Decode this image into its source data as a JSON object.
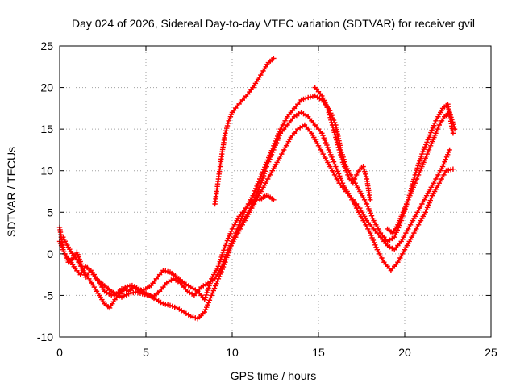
{
  "chart_data": {
    "type": "scatter",
    "title": "Day 024 of 2026, Sidereal Day-to-day VTEC variation (SDTVAR) for receiver gvil",
    "xlabel": "GPS time / hours",
    "ylabel": "SDTVAR / TECUs",
    "xlim": [
      0,
      25
    ],
    "ylim": [
      -10,
      25
    ],
    "x_ticks": [
      "0",
      "5",
      "10",
      "15",
      "20",
      "25"
    ],
    "y_ticks": [
      "-10",
      "-5",
      "0",
      "5",
      "10",
      "15",
      "20",
      "25"
    ],
    "grid": true,
    "legend": "none",
    "marker": "+",
    "color": "#ff0000",
    "series": [
      {
        "x": [
          0.0,
          0.2,
          0.5,
          0.8,
          1.0,
          1.3,
          1.5,
          1.8,
          2.0,
          2.3,
          2.6,
          3.0,
          3.3,
          3.6,
          4.0,
          4.3,
          4.6,
          5.0,
          5.3,
          5.6,
          6.0,
          6.4,
          6.8,
          7.2,
          7.6,
          8.0,
          8.4,
          8.8,
          9.2,
          9.6,
          10.0,
          10.4,
          10.8,
          11.2,
          11.6,
          12.0,
          12.4,
          12.8,
          13.2,
          13.6,
          14.0,
          14.4,
          14.8,
          15.2,
          15.6,
          16.0,
          16.3,
          16.6,
          17.0,
          17.4,
          17.8,
          18.2,
          18.6,
          19.0,
          19.4,
          19.8,
          20.2,
          20.6,
          21.0,
          21.4,
          21.8,
          22.2,
          22.5,
          22.8
        ],
        "y": [
          3.2,
          0.5,
          -1.0,
          -0.5,
          0.2,
          -1.5,
          -2.8,
          -2.0,
          -2.5,
          -3.5,
          -4.5,
          -5.0,
          -4.8,
          -4.2,
          -4.5,
          -4.0,
          -4.5,
          -4.2,
          -3.8,
          -3.0,
          -2.0,
          -2.2,
          -2.8,
          -3.5,
          -4.0,
          -4.5,
          -5.5,
          -3.0,
          -1.5,
          1.0,
          3.0,
          4.5,
          5.5,
          7.0,
          9.0,
          11.0,
          13.0,
          15.0,
          16.5,
          17.5,
          18.5,
          18.8,
          19.0,
          18.5,
          17.5,
          15.5,
          12.5,
          10.5,
          9.0,
          7.5,
          6.0,
          4.0,
          2.5,
          1.5,
          2.0,
          4.0,
          6.5,
          9.5,
          12.0,
          14.0,
          16.0,
          17.5,
          18.0,
          14.5
        ]
      },
      {
        "x": [
          0.0,
          0.3,
          0.6,
          0.9,
          1.2,
          1.5,
          1.8,
          2.1,
          2.4,
          2.7,
          3.0,
          3.3,
          3.6,
          4.0,
          4.4,
          4.8,
          5.2,
          5.6,
          6.0,
          6.4,
          6.8,
          7.2,
          7.6,
          8.0,
          8.4,
          8.8,
          9.2,
          9.6,
          10.0,
          10.4,
          10.8,
          11.2,
          11.6,
          12.0,
          12.4,
          12.8,
          13.2,
          13.6,
          14.0,
          14.4,
          14.8,
          15.2,
          15.6,
          16.0,
          16.4,
          16.8,
          17.2,
          17.6,
          18.0,
          18.4,
          18.8,
          19.2,
          19.6,
          20.0,
          20.4,
          20.8,
          21.2,
          21.6,
          22.0,
          22.4,
          22.8
        ],
        "y": [
          1.5,
          0.0,
          -0.8,
          -1.8,
          -2.5,
          -1.5,
          -2.0,
          -3.0,
          -3.5,
          -4.0,
          -4.5,
          -5.0,
          -5.2,
          -4.8,
          -4.6,
          -4.8,
          -5.0,
          -5.5,
          -6.0,
          -6.2,
          -6.5,
          -7.0,
          -7.5,
          -7.8,
          -7.0,
          -5.0,
          -3.0,
          -1.0,
          1.5,
          3.0,
          4.5,
          6.0,
          8.0,
          10.5,
          12.5,
          14.5,
          15.5,
          16.5,
          17.0,
          16.5,
          15.5,
          14.5,
          12.5,
          10.5,
          8.5,
          7.0,
          5.5,
          4.0,
          2.5,
          0.5,
          -1.0,
          -2.0,
          -1.0,
          0.5,
          2.0,
          3.5,
          5.0,
          7.0,
          8.5,
          10.0,
          10.2
        ]
      },
      {
        "x": [
          0.2,
          0.5,
          0.8,
          1.1,
          1.4,
          1.7,
          2.0,
          2.3,
          2.6,
          2.9,
          3.2,
          3.5,
          3.8,
          4.2,
          4.6,
          5.0,
          5.4,
          5.8,
          6.2,
          6.6,
          7.0,
          7.4,
          7.8,
          8.2,
          8.6,
          9.0,
          9.4,
          9.8,
          10.2,
          10.6,
          11.0,
          11.4,
          11.8,
          12.2,
          12.6,
          13.0,
          13.4,
          13.8,
          14.2,
          14.6,
          15.0,
          15.4,
          15.8,
          16.2,
          16.6,
          17.0,
          17.4,
          17.8,
          18.2,
          18.6,
          19.0,
          19.4,
          19.8,
          20.2,
          20.6,
          21.0,
          21.4,
          21.8,
          22.2,
          22.6
        ],
        "y": [
          2.0,
          0.8,
          -0.2,
          -1.0,
          -2.2,
          -3.0,
          -4.0,
          -5.0,
          -6.0,
          -6.5,
          -5.5,
          -4.8,
          -4.0,
          -3.8,
          -4.2,
          -4.8,
          -5.2,
          -4.5,
          -3.5,
          -3.0,
          -3.5,
          -4.5,
          -5.0,
          -4.0,
          -3.5,
          -3.0,
          -1.5,
          0.5,
          2.0,
          3.5,
          5.0,
          6.5,
          8.0,
          9.5,
          11.0,
          12.5,
          14.0,
          15.0,
          15.5,
          14.5,
          13.0,
          11.5,
          10.0,
          8.5,
          7.5,
          6.5,
          5.5,
          4.0,
          3.0,
          2.0,
          1.0,
          0.5,
          1.5,
          3.0,
          4.5,
          6.0,
          7.5,
          9.0,
          10.5,
          12.5
        ]
      },
      {
        "x": [
          9.0,
          9.2,
          9.4,
          9.6,
          9.8,
          10.0,
          10.3,
          10.6,
          10.9,
          11.2,
          11.5,
          11.8,
          12.1,
          12.4
        ],
        "y": [
          6.0,
          9.0,
          12.0,
          14.5,
          16.0,
          17.0,
          17.8,
          18.5,
          19.2,
          20.0,
          21.0,
          22.0,
          23.0,
          23.5
        ]
      },
      {
        "x": [
          9.8,
          10.0,
          10.2,
          10.4,
          10.6,
          10.8,
          11.0,
          11.2,
          11.4,
          11.6,
          11.8,
          12.0,
          12.2,
          12.4
        ],
        "y": [
          0.5,
          1.5,
          2.5,
          3.5,
          4.5,
          5.5,
          6.0,
          6.3,
          6.5,
          6.5,
          6.8,
          7.0,
          6.8,
          6.5
        ]
      },
      {
        "x": [
          14.8,
          15.0,
          15.2,
          15.4,
          15.6,
          15.8,
          16.0,
          16.2,
          16.4,
          16.6,
          16.8,
          17.0,
          17.2,
          17.4,
          17.6,
          17.8,
          18.0
        ],
        "y": [
          20.0,
          19.5,
          19.0,
          18.2,
          17.0,
          15.5,
          14.0,
          12.5,
          11.0,
          10.0,
          9.0,
          8.5,
          9.5,
          10.2,
          10.5,
          9.0,
          6.5
        ]
      },
      {
        "x": [
          19.0,
          19.3,
          19.6,
          19.9,
          20.2,
          20.5,
          20.8,
          21.1,
          21.4,
          21.7,
          22.0,
          22.3,
          22.6,
          22.9
        ],
        "y": [
          3.0,
          2.5,
          3.5,
          5.0,
          6.5,
          8.0,
          9.5,
          11.0,
          12.5,
          14.0,
          15.5,
          16.5,
          17.0,
          15.0
        ]
      }
    ]
  }
}
